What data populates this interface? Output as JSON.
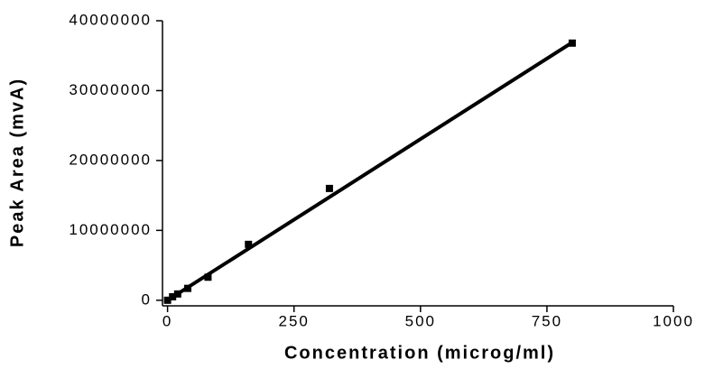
{
  "chart_data": {
    "type": "scatter",
    "x_label": "Concentration (microg/ml)",
    "y_label": "Peak Area (mvA)",
    "series": [
      {
        "kind": "points",
        "color": "#000000",
        "x": [
          0,
          10,
          20,
          40,
          80,
          160,
          320,
          800
        ],
        "values": [
          0,
          500000,
          900000,
          1700000,
          3300000,
          8000000,
          16000000,
          36800000
        ]
      },
      {
        "kind": "line",
        "color": "#000000",
        "x": [
          0,
          800
        ],
        "values": [
          0,
          36900000
        ]
      }
    ],
    "xlim": [
      -10,
      1000
    ],
    "xticks": [
      0,
      250,
      500,
      750,
      1000
    ],
    "ylim": [
      -800000,
      40000000
    ],
    "yticks": [
      0,
      10000000,
      20000000,
      30000000,
      40000000
    ],
    "grid": false
  }
}
